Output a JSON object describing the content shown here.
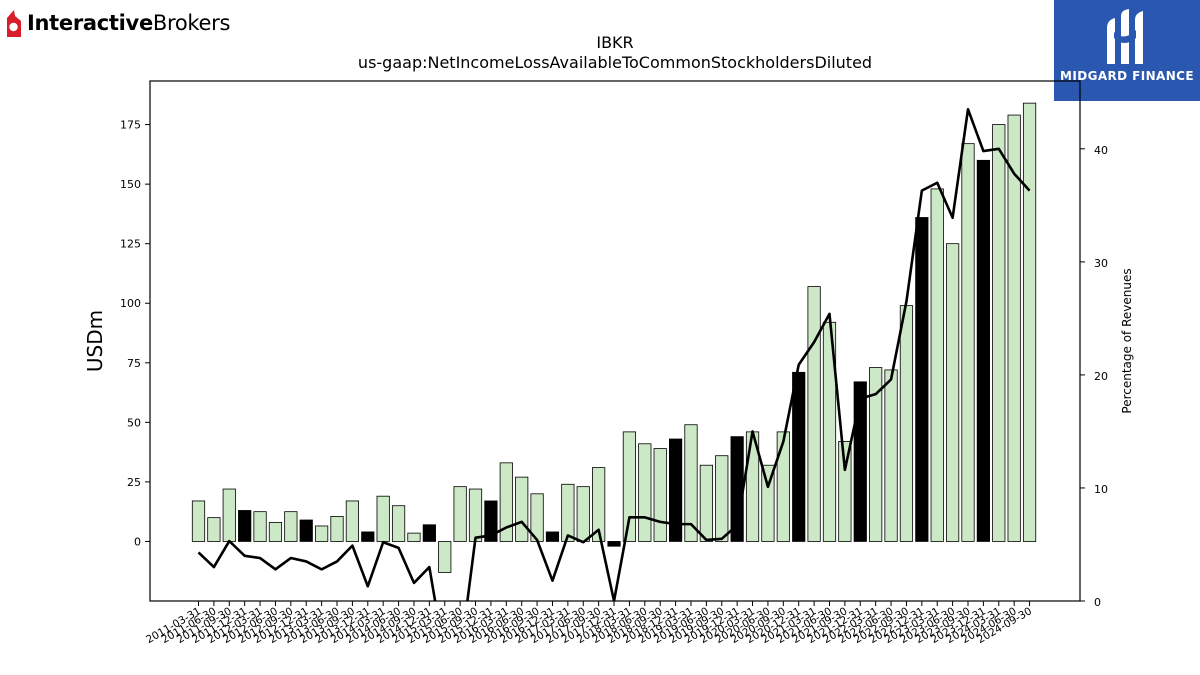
{
  "brand": {
    "name_bold": "Interactive",
    "name_light": "Brokers",
    "icon": "ibkr-flame-icon"
  },
  "badge": {
    "name": "MIDGARD FINANCE",
    "icon": "midgard-logo-icon",
    "color": "#2a58b0"
  },
  "colors": {
    "bar_normal": "#cde8c6",
    "bar_highlight": "#000000",
    "line": "#000000"
  },
  "chart_data": {
    "type": "bar",
    "title": "IBKR",
    "subtitle": "us-gaap:NetIncomeLossAvailableToCommonStockholdersDiluted",
    "ylabel": "USDm",
    "y2label": "Percentage of Revenues",
    "ylim": [
      -25,
      193.3
    ],
    "y2lim": [
      0,
      46
    ],
    "yticks": [
      0,
      25,
      50,
      75,
      100,
      125,
      150,
      175
    ],
    "y2ticks": [
      0,
      10,
      20,
      30,
      40
    ],
    "grid": false,
    "categories": [
      "2011-03-31",
      "2011-06-30",
      "2011-09-30",
      "2011-12-31",
      "2012-03-31",
      "2012-06-30",
      "2012-09-30",
      "2012-12-31",
      "2013-03-31",
      "2013-06-30",
      "2013-09-30",
      "2013-12-31",
      "2014-03-31",
      "2014-06-30",
      "2014-09-30",
      "2014-12-31",
      "2015-03-31",
      "2015-06-30",
      "2015-09-30",
      "2015-12-31",
      "2016-03-31",
      "2016-06-30",
      "2016-09-30",
      "2016-12-31",
      "2017-03-31",
      "2017-06-30",
      "2017-09-30",
      "2017-12-31",
      "2018-03-31",
      "2018-06-30",
      "2018-09-30",
      "2018-12-31",
      "2019-03-31",
      "2019-06-30",
      "2019-09-30",
      "2019-12-31",
      "2020-03-31",
      "2020-06-30",
      "2020-09-30",
      "2020-12-31",
      "2021-03-31",
      "2021-06-30",
      "2021-09-30",
      "2021-12-31",
      "2022-03-31",
      "2022-06-30",
      "2022-09-30",
      "2022-12-31",
      "2023-03-31",
      "2023-06-30",
      "2023-09-30",
      "2023-12-31",
      "2024-03-31",
      "2024-06-30",
      "2024-09-30"
    ],
    "series": [
      {
        "type": "bar",
        "axis": "left",
        "values": [
          17,
          10,
          22,
          13,
          12.5,
          8,
          12.5,
          9,
          6.5,
          10.5,
          17,
          4,
          19,
          15,
          3.5,
          7,
          -13,
          23,
          22,
          17,
          33,
          27,
          20,
          4,
          24,
          23,
          31,
          -2,
          46,
          41,
          39,
          43,
          49,
          32,
          36,
          44,
          46,
          32,
          46,
          71,
          107,
          92,
          42,
          67,
          73,
          72,
          99,
          136,
          148,
          125,
          167,
          160,
          175,
          179,
          184
        ],
        "highlight": [
          false,
          false,
          false,
          true,
          false,
          false,
          false,
          true,
          false,
          false,
          false,
          true,
          false,
          false,
          false,
          true,
          false,
          false,
          false,
          true,
          false,
          false,
          false,
          true,
          false,
          false,
          false,
          true,
          false,
          false,
          false,
          true,
          false,
          false,
          false,
          true,
          false,
          false,
          false,
          true,
          false,
          false,
          false,
          true,
          false,
          false,
          false,
          true,
          false,
          false,
          false,
          true,
          false,
          false,
          false
        ]
      },
      {
        "type": "line",
        "axis": "right",
        "values": [
          4.3,
          3.0,
          5.3,
          4.0,
          3.8,
          2.8,
          3.8,
          3.5,
          2.8,
          3.5,
          4.9,
          1.3,
          5.2,
          4.7,
          1.6,
          3.0,
          -5.0,
          -5.0,
          5.6,
          5.8,
          6.5,
          7.0,
          5.4,
          1.8,
          5.8,
          5.2,
          6.3,
          0.0,
          7.4,
          7.4,
          7.0,
          6.8,
          6.8,
          5.4,
          5.5,
          6.7,
          15.0,
          10.1,
          14.1,
          20.9,
          22.9,
          25.4,
          11.6,
          17.9,
          18.3,
          19.6,
          26.5,
          36.3,
          37.0,
          33.9,
          43.5,
          39.8,
          40.0,
          37.8,
          36.3
        ]
      }
    ]
  }
}
